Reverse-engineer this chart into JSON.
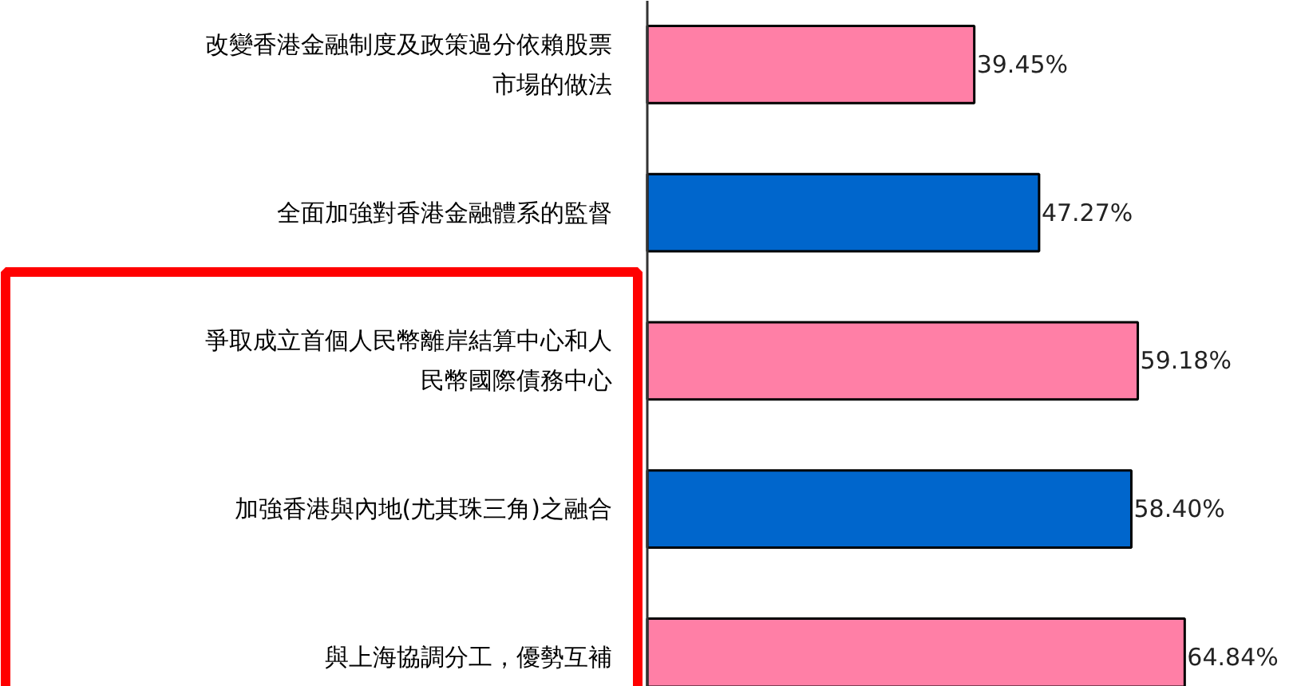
{
  "chart_data": {
    "type": "bar",
    "orientation": "horizontal",
    "categories": [
      "改變香港金融制度及政策過分依賴股票市場的做法",
      "全面加強對香港金融體系的監督",
      "爭取成立首個人民幣離岸結算中心和人民幣國際債務中心",
      "加強香港與內地(尤其珠三角)之融合",
      "與上海協調分工，優勢互補"
    ],
    "values": [
      39.45,
      47.27,
      59.18,
      58.4,
      64.84
    ],
    "colors": [
      "#ff7fa6",
      "#0066cc",
      "#ff7fa6",
      "#0066cc",
      "#ff7fa6"
    ],
    "value_labels": [
      "39.45%",
      "47.27%",
      "59.18%",
      "58.40%",
      "64.84%"
    ],
    "xlim": [
      0,
      78
    ],
    "tick_labels": "y",
    "grid": false
  }
}
